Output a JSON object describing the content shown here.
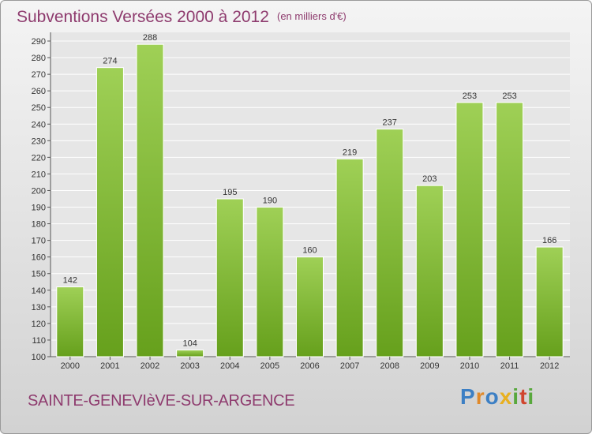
{
  "title": "Subventions Versées 2000 à 2012",
  "unit_note": "(en milliers d'€)",
  "commune": "SAINTE-GENEVIèVE-SUR-ARGENCE",
  "logo_text": "Proxiti",
  "colors": {
    "title": "#8e3b6e",
    "bar_light": "#9fd056",
    "bar_dark": "#66a01c",
    "grid": "#ffffff"
  },
  "chart_data": {
    "type": "bar",
    "categories": [
      "2000",
      "2001",
      "2002",
      "2003",
      "2004",
      "2005",
      "2006",
      "2007",
      "2008",
      "2009",
      "2010",
      "2011",
      "2012"
    ],
    "values": [
      142,
      274,
      288,
      104,
      195,
      190,
      160,
      219,
      237,
      203,
      253,
      253,
      166
    ],
    "ylim": [
      100,
      290
    ],
    "yticks": [
      100,
      110,
      120,
      130,
      140,
      150,
      160,
      170,
      180,
      190,
      200,
      210,
      220,
      230,
      240,
      250,
      260,
      270,
      280,
      290
    ],
    "grid": true
  }
}
